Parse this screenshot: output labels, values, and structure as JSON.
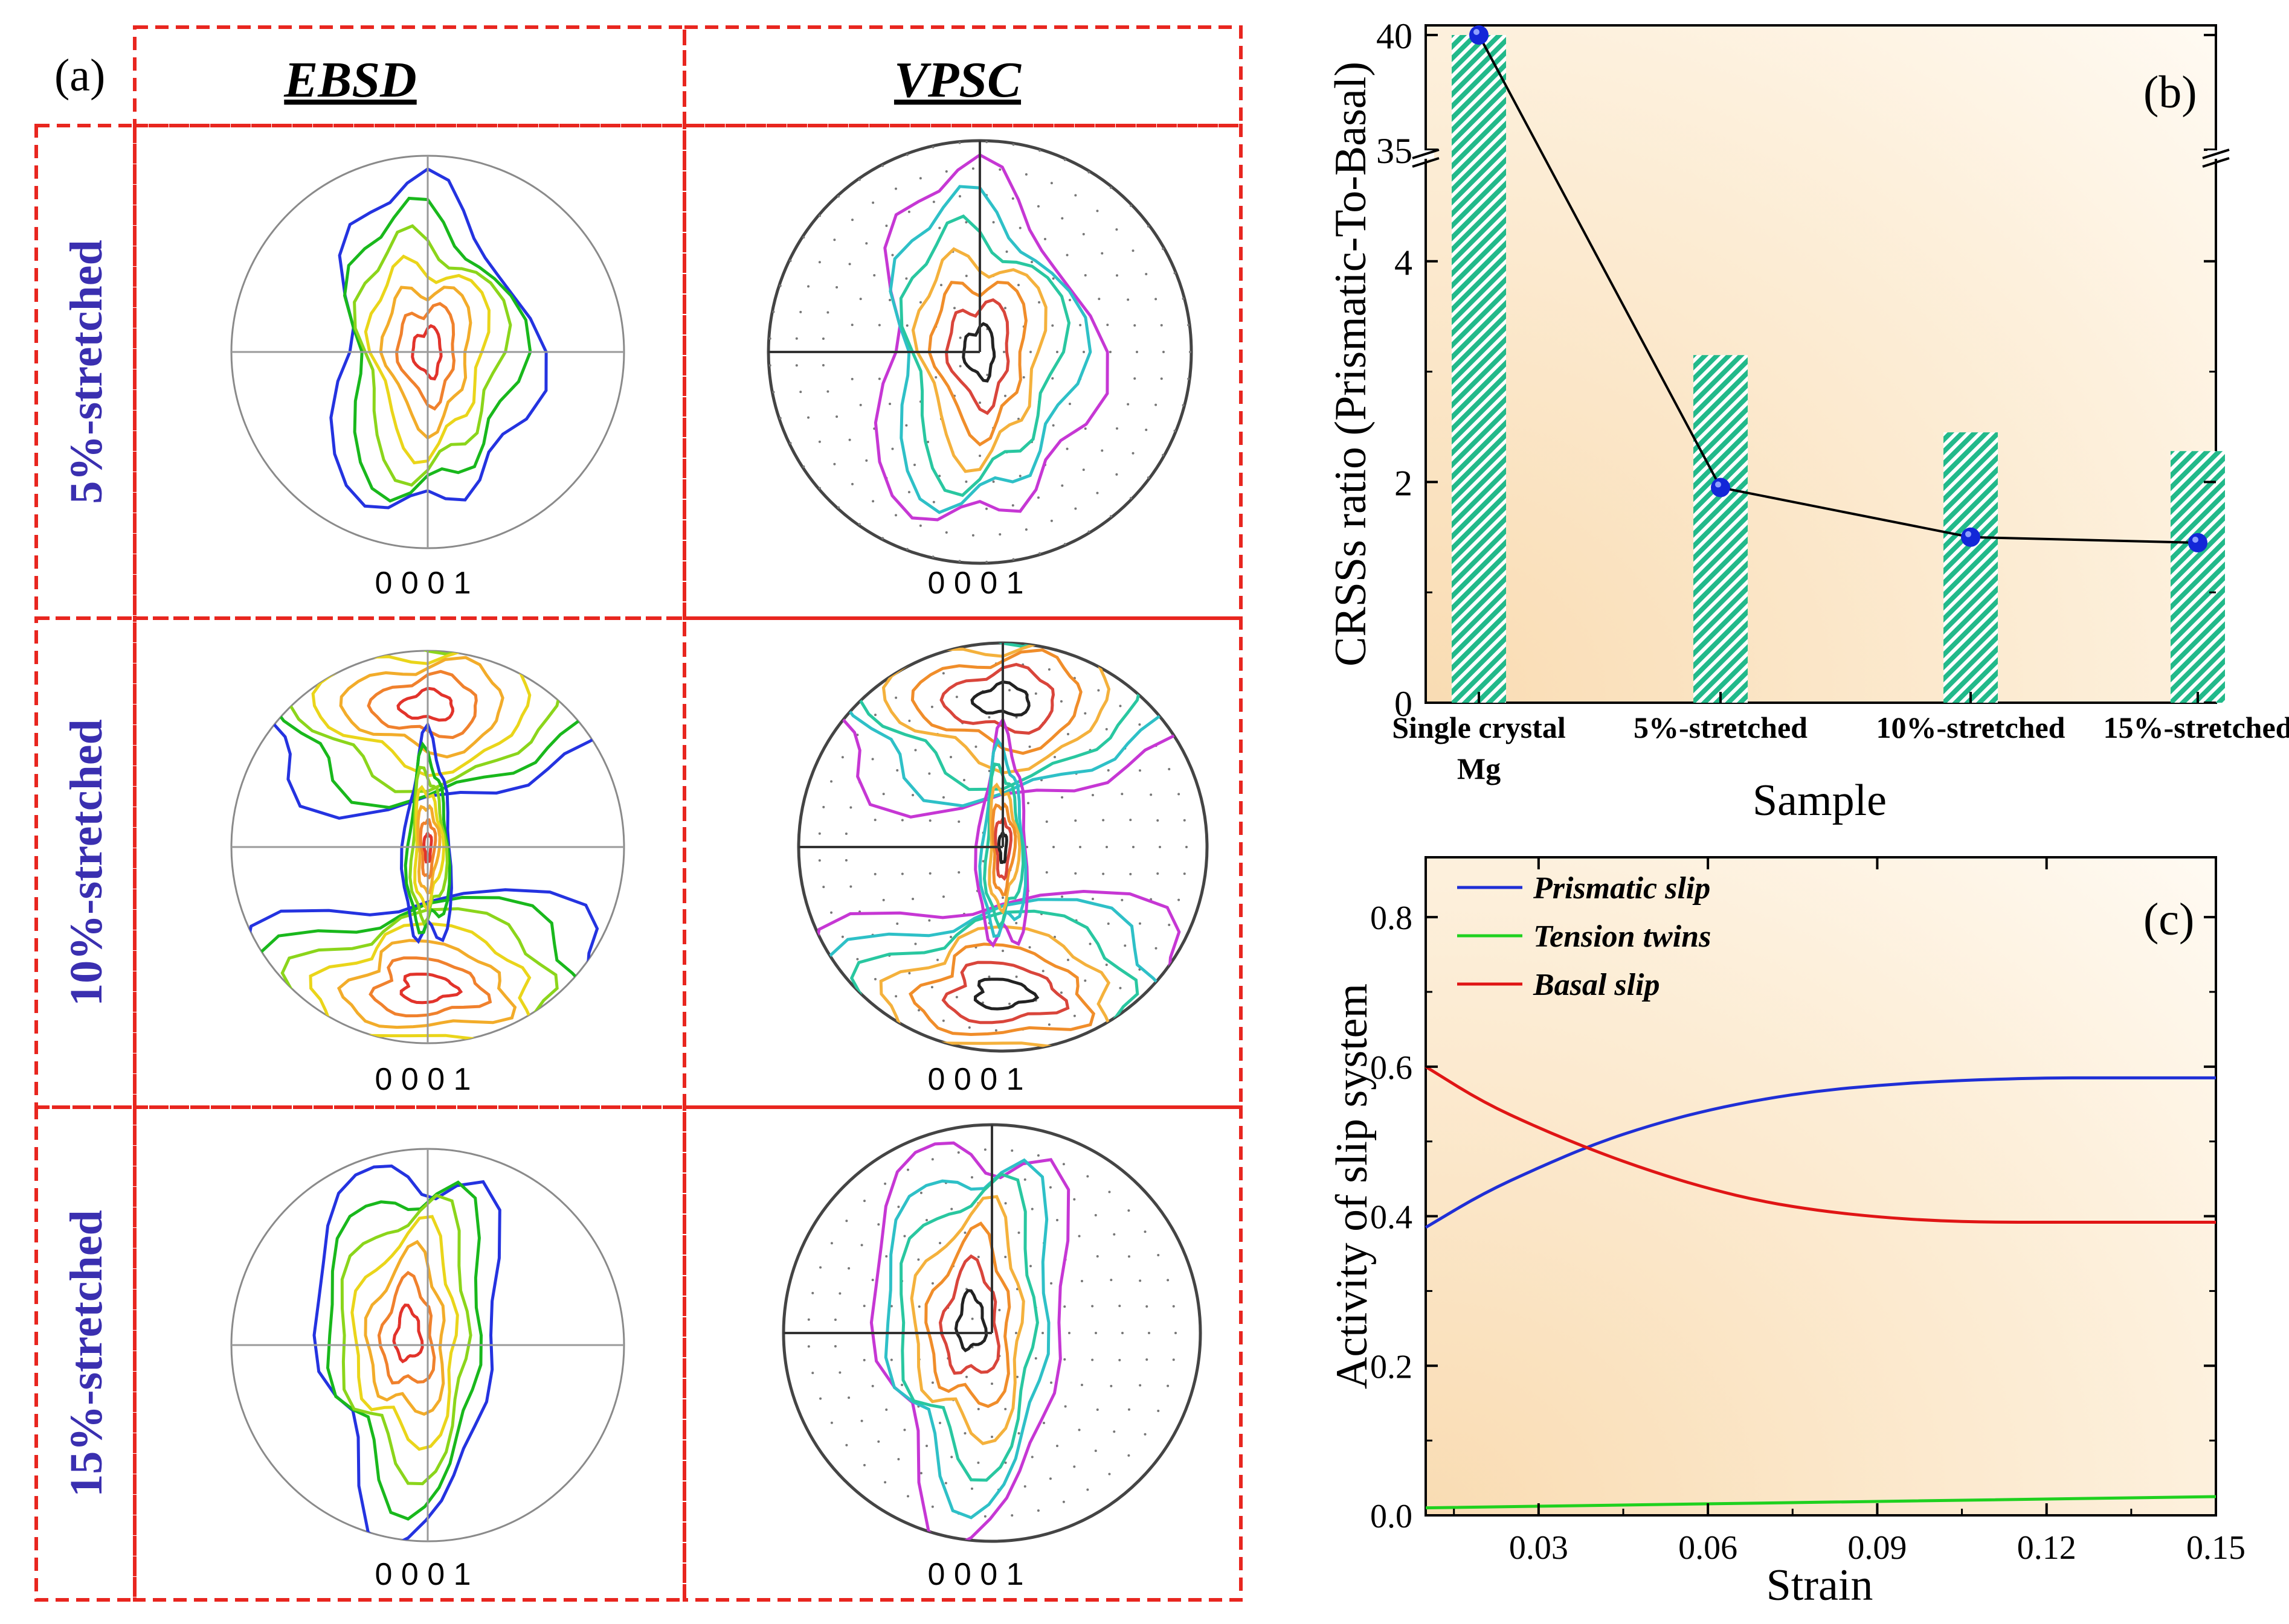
{
  "colors": {
    "dash_border": "#e8261f",
    "row_label": "#3a2fb0",
    "bar_fill": "#22b98a",
    "panel_bg_light": "#fffaf2",
    "panel_bg_warm": "#f9dcb3",
    "line_black": "#000000",
    "marker_blue": "#1327d8",
    "prismatic": "#1f2fd6",
    "tension": "#1fd11f",
    "basal": "#e01515",
    "contours": [
      "#2433e0",
      "#19b81c",
      "#8bd51b",
      "#ead51a",
      "#f2ac2a",
      "#f0812d",
      "#e2332b"
    ],
    "vpsc_contours": [
      "#c637d4",
      "#2ec0c7",
      "#29c7a0",
      "#f4b13c",
      "#f08d2a",
      "#d9453b",
      "#222222"
    ]
  },
  "panel_a": {
    "label": "(a)",
    "col_headers": [
      "EBSD",
      "VPSC"
    ],
    "row_labels": [
      "5%-stretched",
      "10%-stretched",
      "15%-stretched"
    ],
    "pole_label": "0 0 0 1",
    "icons": [
      "pole-figure-ebsd",
      "pole-figure-vpsc"
    ]
  },
  "chart_data": [
    {
      "type": "bar",
      "panel_label": "(b)",
      "title": "",
      "xlabel": "Sample",
      "ylabel": "CRSSs ratio (Prismatic-To-Basal)",
      "categories": [
        "Single crystal Mg",
        "5%-stretched",
        "10%-stretched",
        "15%-stretched"
      ],
      "category_lines": [
        [
          "Single crystal",
          "Mg"
        ],
        [
          "5%-stretched"
        ],
        [
          "10%-stretched"
        ],
        [
          "15%-stretched"
        ]
      ],
      "series": [
        {
          "name": "bars",
          "kind": "bar",
          "values": [
            40,
            3.15,
            2.45,
            2.28
          ]
        },
        {
          "name": "line",
          "kind": "line+marker",
          "values": [
            40,
            1.95,
            1.5,
            1.45
          ]
        }
      ],
      "axis_break": {
        "lower": [
          0,
          5
        ],
        "upper": [
          35,
          40
        ]
      },
      "yticks": [
        "0",
        "2",
        "4",
        "35",
        "40"
      ]
    },
    {
      "type": "line",
      "panel_label": "(c)",
      "title": "",
      "xlabel": "Strain",
      "ylabel": "Activity of slip system",
      "xlim": [
        0.01,
        0.15
      ],
      "ylim": [
        0,
        0.88
      ],
      "xticks": [
        "0.03",
        "0.06",
        "0.09",
        "0.12",
        "0.15"
      ],
      "yticks": [
        "0.0",
        "0.2",
        "0.4",
        "0.6",
        "0.8"
      ],
      "legend_position": "top-left",
      "series": [
        {
          "name": "Prismatic slip",
          "x": [
            0.01,
            0.02,
            0.03,
            0.04,
            0.05,
            0.06,
            0.07,
            0.08,
            0.09,
            0.1,
            0.11,
            0.12,
            0.13,
            0.14,
            0.15
          ],
          "values": [
            0.385,
            0.43,
            0.465,
            0.497,
            0.522,
            0.542,
            0.557,
            0.568,
            0.575,
            0.58,
            0.583,
            0.585,
            0.585,
            0.585,
            0.585
          ]
        },
        {
          "name": "Tension twins",
          "x": [
            0.01,
            0.15
          ],
          "values": [
            0.01,
            0.025
          ]
        },
        {
          "name": "Basal slip",
          "x": [
            0.01,
            0.02,
            0.03,
            0.04,
            0.05,
            0.06,
            0.07,
            0.08,
            0.09,
            0.1,
            0.11,
            0.12,
            0.13,
            0.14,
            0.15
          ],
          "values": [
            0.6,
            0.553,
            0.518,
            0.487,
            0.46,
            0.437,
            0.419,
            0.407,
            0.399,
            0.394,
            0.392,
            0.392,
            0.392,
            0.392,
            0.392
          ]
        }
      ]
    }
  ]
}
